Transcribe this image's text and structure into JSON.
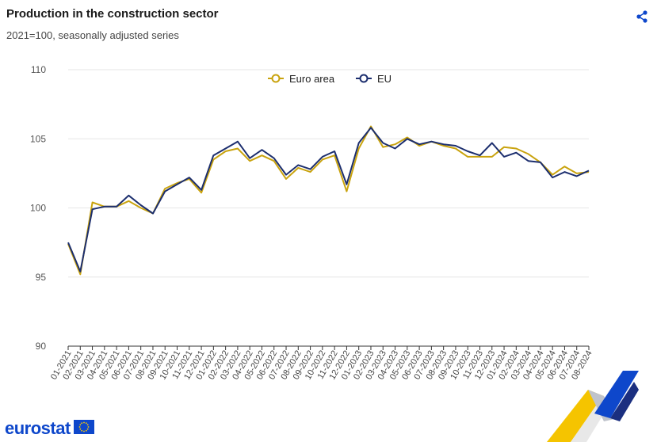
{
  "header": {
    "title": "Production in the construction sector",
    "subtitle": "2021=100, seasonally adjusted series"
  },
  "branding": {
    "logo_text": "eurostat"
  },
  "icons": {
    "share": "share-icon",
    "flag": "eu-flag-icon"
  },
  "colors": {
    "euro_area": "#c9a30e",
    "eu": "#1c2e6e",
    "grid": "#e6e6e6",
    "brand": "#0e47cb"
  },
  "chart_data": {
    "type": "line",
    "title": "Production in the construction sector",
    "subtitle": "2021=100, seasonally adjusted series",
    "xlabel": "",
    "ylabel": "",
    "ylim": [
      90,
      110
    ],
    "yticks": [
      90,
      95,
      100,
      105,
      110
    ],
    "grid": true,
    "legend_position": "top-center",
    "categories": [
      "01-2021",
      "02-2021",
      "03-2021",
      "04-2021",
      "05-2021",
      "06-2021",
      "07-2021",
      "08-2021",
      "09-2021",
      "10-2021",
      "11-2021",
      "12-2021",
      "01-2022",
      "02-2022",
      "03-2022",
      "04-2022",
      "05-2022",
      "06-2022",
      "07-2022",
      "08-2022",
      "09-2022",
      "10-2022",
      "11-2022",
      "12-2022",
      "01-2023",
      "02-2023",
      "03-2023",
      "04-2023",
      "05-2023",
      "06-2023",
      "07-2023",
      "08-2023",
      "09-2023",
      "10-2023",
      "11-2023",
      "12-2023",
      "01-2024",
      "02-2024",
      "03-2024",
      "04-2024",
      "05-2024",
      "06-2024",
      "07-2024",
      "08-2024"
    ],
    "series": [
      {
        "name": "Euro area",
        "color": "#c9a30e",
        "values": [
          97.4,
          95.2,
          100.4,
          100.1,
          100.1,
          100.5,
          100.0,
          99.6,
          101.4,
          101.8,
          102.1,
          101.1,
          103.5,
          104.1,
          104.3,
          103.4,
          103.8,
          103.4,
          102.1,
          102.9,
          102.6,
          103.5,
          103.8,
          101.2,
          104.3,
          105.9,
          104.4,
          104.6,
          105.1,
          104.5,
          104.8,
          104.5,
          104.3,
          103.7,
          103.7,
          103.7,
          104.4,
          104.3,
          103.9,
          103.3,
          102.4,
          103.0,
          102.5,
          102.6
        ]
      },
      {
        "name": "EU",
        "color": "#1c2e6e",
        "values": [
          97.5,
          95.4,
          99.9,
          100.1,
          100.1,
          100.9,
          100.2,
          99.6,
          101.2,
          101.7,
          102.2,
          101.3,
          103.8,
          104.3,
          104.8,
          103.6,
          104.2,
          103.6,
          102.4,
          103.1,
          102.8,
          103.7,
          104.1,
          101.7,
          104.7,
          105.8,
          104.7,
          104.3,
          105.0,
          104.6,
          104.8,
          104.6,
          104.5,
          104.1,
          103.8,
          104.7,
          103.7,
          104.0,
          103.4,
          103.3,
          102.2,
          102.6,
          102.3,
          102.7
        ]
      }
    ]
  }
}
